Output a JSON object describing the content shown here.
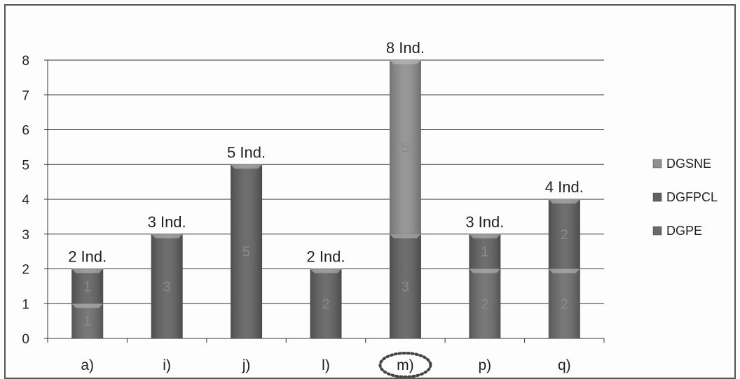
{
  "chart_data": {
    "type": "bar",
    "stacked": true,
    "title": "",
    "xlabel": "",
    "ylabel": "",
    "ylim": [
      0,
      8
    ],
    "yticks": [
      0,
      1,
      2,
      3,
      4,
      5,
      6,
      7,
      8
    ],
    "grid": true,
    "legend_position": "right",
    "categories": [
      "a)",
      "i)",
      "j)",
      "l)",
      "m)",
      "p)",
      "q)"
    ],
    "highlighted_category": "m)",
    "series": [
      {
        "name": "DGPE",
        "values": [
          1,
          0,
          0,
          0,
          0,
          2,
          2
        ],
        "color": "#6a6a6a"
      },
      {
        "name": "DGFPCL",
        "values": [
          1,
          3,
          5,
          2,
          3,
          1,
          2
        ],
        "color": "#5f5f5f"
      },
      {
        "name": "DGSNE",
        "values": [
          0,
          0,
          0,
          0,
          5,
          0,
          0
        ],
        "color": "#8e8e8e"
      }
    ],
    "totals": [
      "2 Ind.",
      "3 Ind.",
      "5 Ind.",
      "2 Ind.",
      "8 Ind.",
      "3 Ind.",
      "4 Ind."
    ]
  }
}
